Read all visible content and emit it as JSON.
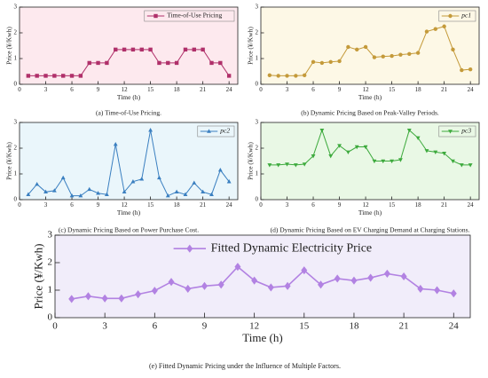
{
  "chart_data": [
    {
      "type": "line",
      "caption": "(a) Time-of-Use Pricing.",
      "xlabel": "Time (h)",
      "ylabel": "Price (¥/Kwh)",
      "background": "#fde9ee",
      "legend": "upper right",
      "x": [
        1,
        2,
        3,
        4,
        5,
        6,
        7,
        8,
        9,
        10,
        11,
        12,
        13,
        14,
        15,
        16,
        17,
        18,
        19,
        20,
        21,
        22,
        23,
        24
      ],
      "series": [
        {
          "name": "Time-of-Use Pricing",
          "color": "#b0306a",
          "marker": "square",
          "values": [
            0.33,
            0.33,
            0.33,
            0.33,
            0.33,
            0.33,
            0.33,
            0.83,
            0.83,
            0.83,
            1.35,
            1.35,
            1.35,
            1.35,
            1.35,
            0.83,
            0.83,
            0.83,
            1.35,
            1.35,
            1.35,
            0.83,
            0.83,
            0.33
          ]
        }
      ],
      "xlim": [
        0,
        25
      ],
      "xticks": [
        0,
        3,
        6,
        9,
        12,
        15,
        18,
        21,
        24
      ],
      "ylim": [
        0,
        3
      ],
      "yticks": [
        0,
        1,
        2,
        3
      ]
    },
    {
      "type": "line",
      "caption": "(b) Dynamic Pricing Based on Peak-Valley Periods.",
      "xlabel": "Time (h)",
      "ylabel": "Price (¥/Kwh)",
      "background": "#fdf8e6",
      "legend": "upper right",
      "x": [
        1,
        2,
        3,
        4,
        5,
        6,
        7,
        8,
        9,
        10,
        11,
        12,
        13,
        14,
        15,
        16,
        17,
        18,
        19,
        20,
        21,
        22,
        23,
        24
      ],
      "series": [
        {
          "name": "pc1",
          "color": "#c49a3a",
          "marker": "circle",
          "values": [
            0.35,
            0.33,
            0.33,
            0.33,
            0.35,
            0.87,
            0.83,
            0.87,
            0.9,
            1.45,
            1.35,
            1.45,
            1.05,
            1.08,
            1.1,
            1.15,
            1.18,
            1.22,
            2.05,
            2.15,
            2.25,
            1.35,
            0.55,
            0.58
          ]
        }
      ],
      "xlim": [
        0,
        25
      ],
      "xticks": [
        0,
        3,
        6,
        9,
        12,
        15,
        18,
        21,
        24
      ],
      "ylim": [
        0,
        3
      ],
      "yticks": [
        0,
        1,
        2,
        3
      ]
    },
    {
      "type": "line",
      "caption": "(c) Dynamic Pricing Based on Power Purchase Cost.",
      "xlabel": "Time (h)",
      "ylabel": "Price (¥/Kwh)",
      "background": "#eaf6fb",
      "legend": "upper right",
      "x": [
        1,
        2,
        3,
        4,
        5,
        6,
        7,
        8,
        9,
        10,
        11,
        12,
        13,
        14,
        15,
        16,
        17,
        18,
        19,
        20,
        21,
        22,
        23,
        24
      ],
      "series": [
        {
          "name": "pc2",
          "color": "#3a7fc0",
          "marker": "triangle-up",
          "values": [
            0.2,
            0.6,
            0.3,
            0.35,
            0.85,
            0.15,
            0.15,
            0.4,
            0.25,
            0.2,
            2.15,
            0.3,
            0.7,
            0.8,
            2.7,
            0.85,
            0.15,
            0.3,
            0.2,
            0.65,
            0.3,
            0.2,
            1.15,
            0.7
          ]
        }
      ],
      "xlim": [
        0,
        25
      ],
      "xticks": [
        0,
        3,
        6,
        9,
        12,
        15,
        18,
        21,
        24
      ],
      "ylim": [
        0,
        3
      ],
      "yticks": [
        0,
        1,
        2,
        3
      ]
    },
    {
      "type": "line",
      "caption": "(d) Dynamic Pricing Based on EV Charging Demand at Charging Stations.",
      "xlabel": "Time (h)",
      "ylabel": "Price (¥/Kwh)",
      "background": "#e9f8e5",
      "legend": "upper right",
      "x": [
        1,
        2,
        3,
        4,
        5,
        6,
        7,
        8,
        9,
        10,
        11,
        12,
        13,
        14,
        15,
        16,
        17,
        18,
        19,
        20,
        21,
        22,
        23,
        24
      ],
      "series": [
        {
          "name": "pc3",
          "color": "#3daa3d",
          "marker": "triangle-down",
          "values": [
            1.35,
            1.35,
            1.38,
            1.35,
            1.38,
            1.7,
            2.7,
            1.7,
            2.1,
            1.85,
            2.05,
            2.05,
            1.5,
            1.5,
            1.5,
            1.55,
            2.7,
            2.4,
            1.9,
            1.85,
            1.8,
            1.5,
            1.35,
            1.35
          ]
        }
      ],
      "xlim": [
        0,
        25
      ],
      "xticks": [
        0,
        3,
        6,
        9,
        12,
        15,
        18,
        21,
        24
      ],
      "ylim": [
        0,
        3
      ],
      "yticks": [
        0,
        1,
        2,
        3
      ]
    },
    {
      "type": "line",
      "caption": "(e) Fitted Dynamic Pricing under the Influence of Multiple Factors.",
      "xlabel": "Time (h)",
      "ylabel": "Price (¥/Kwh)",
      "background": "#f1edfa",
      "legend": "upper right",
      "x": [
        1,
        2,
        3,
        4,
        5,
        6,
        7,
        8,
        9,
        10,
        11,
        12,
        13,
        14,
        15,
        16,
        17,
        18,
        19,
        20,
        21,
        22,
        23,
        24
      ],
      "series": [
        {
          "name": "Fitted Dynamic Electricity Price",
          "color": "#b282e2",
          "marker": "diamond",
          "values": [
            0.68,
            0.78,
            0.7,
            0.7,
            0.85,
            0.98,
            1.3,
            1.05,
            1.15,
            1.2,
            1.85,
            1.35,
            1.1,
            1.15,
            1.72,
            1.2,
            1.42,
            1.35,
            1.45,
            1.6,
            1.5,
            1.05,
            1.0,
            0.88
          ]
        }
      ],
      "xlim": [
        0,
        25
      ],
      "xticks": [
        0,
        3,
        6,
        9,
        12,
        15,
        18,
        21,
        24
      ],
      "ylim": [
        0,
        3
      ],
      "yticks": [
        0,
        1,
        2,
        3
      ]
    }
  ]
}
